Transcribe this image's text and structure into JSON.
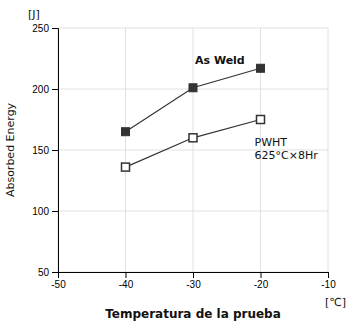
{
  "chart_data": {
    "type": "line",
    "xlabel": "Temperatura de la prueba",
    "ylabel": "Absorbed Energy",
    "x_unit": "[℃]",
    "y_unit": "[J]",
    "annotations": [
      "As Weld",
      "PWHT",
      "625°C×8Hr"
    ],
    "x": [
      -40,
      -30,
      -20
    ],
    "series": [
      {
        "values": [
          165,
          201,
          217
        ],
        "color": "#333333",
        "marker": "square"
      },
      {
        "values": [
          136,
          160,
          175
        ],
        "color": "#333333",
        "marker": "square-open"
      }
    ],
    "xlim": [
      -50,
      -10
    ],
    "ylim": [
      50,
      250
    ],
    "xticks": [
      -50,
      -40,
      -30,
      -20,
      -10
    ],
    "yticks": [
      50,
      100,
      150,
      200,
      250
    ],
    "grid": true
  }
}
